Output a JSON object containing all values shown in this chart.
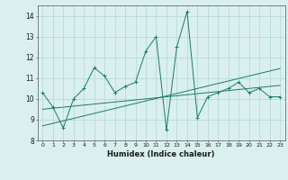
{
  "xlabel": "Humidex (Indice chaleur)",
  "x": [
    0,
    1,
    2,
    3,
    4,
    5,
    6,
    7,
    8,
    9,
    10,
    11,
    12,
    13,
    14,
    15,
    16,
    17,
    18,
    19,
    20,
    21,
    22,
    23
  ],
  "y_main": [
    10.3,
    9.6,
    8.6,
    10.0,
    10.5,
    11.5,
    11.1,
    10.3,
    10.6,
    10.8,
    12.3,
    13.0,
    8.5,
    12.5,
    14.2,
    9.1,
    10.1,
    10.3,
    10.5,
    10.8,
    10.3,
    10.5,
    10.1,
    10.1
  ],
  "y_trend1": [
    9.5,
    9.55,
    9.6,
    9.65,
    9.7,
    9.75,
    9.8,
    9.85,
    9.9,
    9.95,
    10.0,
    10.05,
    10.1,
    10.15,
    10.2,
    10.25,
    10.3,
    10.35,
    10.4,
    10.45,
    10.5,
    10.55,
    10.6,
    10.65
  ],
  "y_trend2": [
    8.7,
    8.82,
    8.94,
    9.06,
    9.18,
    9.3,
    9.42,
    9.54,
    9.66,
    9.78,
    9.9,
    10.02,
    10.14,
    10.26,
    10.38,
    10.5,
    10.62,
    10.74,
    10.86,
    10.98,
    11.1,
    11.22,
    11.34,
    11.46
  ],
  "ylim": [
    8,
    14.5
  ],
  "yticks": [
    8,
    9,
    10,
    11,
    12,
    13,
    14
  ],
  "line_color": "#1a7a6e",
  "bg_color": "#d9f0ee",
  "grid_color": "#b0d8d4"
}
